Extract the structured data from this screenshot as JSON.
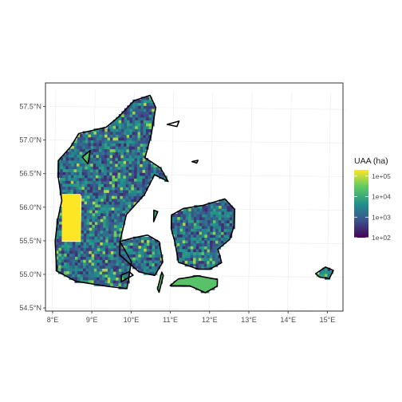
{
  "chart_data": {
    "type": "heatmap",
    "title": "",
    "xlabel": "",
    "ylabel": "",
    "x_ticks": [
      "8°E",
      "9°E",
      "10°E",
      "11°E",
      "12°E",
      "13°E",
      "14°E",
      "15°E"
    ],
    "y_ticks": [
      "54.5°N",
      "55.0°N",
      "55.5°N",
      "56.0°N",
      "56.5°N",
      "57.0°N",
      "57.5°N"
    ],
    "xlim": [
      7.9,
      15.3
    ],
    "ylim": [
      54.45,
      57.7
    ],
    "legend": {
      "title": "UAA (ha)",
      "scale": "log",
      "range": [
        100,
        200000
      ],
      "labels": [
        "1e+05",
        "1e+04",
        "1e+03",
        "1e+02"
      ],
      "position": "right"
    },
    "colormap": [
      "#440154",
      "#3b528b",
      "#21918c",
      "#5ec962",
      "#fde725"
    ],
    "highlight_cell": {
      "lon_range": [
        8.2,
        8.7
      ],
      "lat_range": [
        55.5,
        56.2
      ],
      "value": 200000
    },
    "grid": true
  }
}
